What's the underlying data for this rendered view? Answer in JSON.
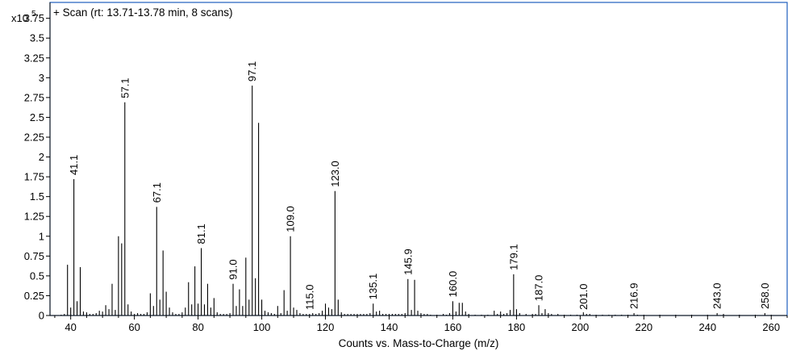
{
  "chart_data": {
    "type": "bar",
    "title": "+ Scan (rt: 13.71-13.78 min, 8 scans)",
    "xlabel": "Counts vs. Mass-to-Charge (m/z)",
    "ylabel": "",
    "y_multiplier": "x10",
    "y_exponent": "5",
    "xlim": [
      33.5,
      265
    ],
    "ylim": [
      0,
      3.95
    ],
    "x_ticks": [
      "40",
      "60",
      "80",
      "100",
      "120",
      "140",
      "160",
      "180",
      "200",
      "220",
      "240",
      "260"
    ],
    "y_ticks": [
      "0",
      "0.25",
      "0.5",
      "0.75",
      "1",
      "1.25",
      "1.5",
      "1.75",
      "2",
      "2.25",
      "2.5",
      "2.75",
      "3",
      "3.25",
      "3.5",
      "3.75"
    ],
    "grid": false,
    "frame_color": "#1f5fbf",
    "series": [
      {
        "x": [
          37,
          38,
          39,
          40,
          41,
          42,
          43,
          44,
          45,
          46,
          47,
          48,
          49,
          50,
          51,
          52,
          53,
          54,
          55,
          56,
          57,
          58,
          59,
          60,
          61,
          62,
          63,
          64,
          65,
          66,
          67,
          68,
          69,
          70,
          71,
          72,
          73,
          74,
          75,
          76,
          77,
          78,
          79,
          80,
          81,
          82,
          83,
          84,
          85,
          86,
          87,
          88,
          89,
          90,
          91,
          92,
          93,
          94,
          95,
          96,
          97,
          98,
          99,
          100,
          101,
          102,
          103,
          104,
          105,
          106,
          107,
          108,
          109,
          110,
          111,
          112,
          113,
          114,
          115,
          116,
          117,
          118,
          119,
          120,
          121,
          122,
          123,
          124,
          125,
          126,
          127,
          128,
          129,
          130,
          131,
          132,
          133,
          134,
          135,
          136,
          137,
          138,
          139,
          140,
          141,
          142,
          143,
          144,
          145,
          145.9,
          147,
          148,
          149,
          150,
          151,
          152,
          153,
          155,
          157,
          158,
          159,
          160,
          161,
          162,
          163,
          164,
          165,
          167,
          169,
          171,
          173,
          174,
          175,
          176,
          177,
          178,
          179.1,
          180,
          181,
          183,
          185,
          186,
          187,
          188,
          189,
          190,
          191,
          193,
          195,
          197,
          199,
          201,
          202,
          203,
          205,
          207,
          209,
          211,
          213,
          215,
          216.9,
          218,
          220,
          225,
          230,
          235,
          240,
          243,
          245,
          250,
          255,
          258,
          260
        ],
        "values": [
          0.01,
          0.02,
          0.64,
          0.1,
          1.72,
          0.18,
          0.61,
          0.05,
          0.04,
          0.02,
          0.02,
          0.03,
          0.06,
          0.05,
          0.13,
          0.08,
          0.4,
          0.07,
          1.0,
          0.91,
          2.69,
          0.14,
          0.05,
          0.02,
          0.03,
          0.02,
          0.02,
          0.04,
          0.28,
          0.12,
          1.37,
          0.2,
          0.82,
          0.3,
          0.1,
          0.04,
          0.02,
          0.02,
          0.04,
          0.1,
          0.42,
          0.14,
          0.62,
          0.15,
          0.85,
          0.14,
          0.4,
          0.1,
          0.22,
          0.04,
          0.02,
          0.02,
          0.02,
          0.03,
          0.4,
          0.12,
          0.33,
          0.12,
          0.73,
          0.2,
          2.9,
          0.47,
          2.43,
          0.2,
          0.06,
          0.04,
          0.03,
          0.02,
          0.12,
          0.03,
          0.32,
          0.06,
          1.0,
          0.1,
          0.07,
          0.03,
          0.02,
          0.02,
          0.02,
          0.03,
          0.02,
          0.03,
          0.06,
          0.15,
          0.1,
          0.08,
          1.57,
          0.2,
          0.04,
          0.02,
          0.02,
          0.02,
          0.02,
          0.02,
          0.02,
          0.02,
          0.02,
          0.03,
          0.15,
          0.05,
          0.06,
          0.02,
          0.02,
          0.02,
          0.02,
          0.02,
          0.02,
          0.02,
          0.03,
          0.46,
          0.07,
          0.45,
          0.06,
          0.03,
          0.02,
          0.02,
          0.01,
          0.01,
          0.02,
          0.01,
          0.03,
          0.18,
          0.05,
          0.16,
          0.16,
          0.05,
          0.02,
          0.01,
          0.01,
          0.01,
          0.06,
          0.02,
          0.05,
          0.02,
          0.03,
          0.07,
          0.52,
          0.08,
          0.03,
          0.02,
          0.02,
          0.02,
          0.13,
          0.03,
          0.08,
          0.03,
          0.02,
          0.02,
          0.01,
          0.01,
          0.01,
          0.04,
          0.02,
          0.02,
          0.01,
          0.01,
          0.01,
          0.01,
          0.01,
          0.01,
          0.03,
          0.01,
          0.01,
          0.01,
          0.01,
          0.01,
          0.01,
          0.03,
          0.02,
          0.01,
          0.01,
          0.03,
          0.01
        ]
      }
    ],
    "peak_labels": [
      {
        "text": "41.1",
        "x": 41,
        "y": 1.72
      },
      {
        "text": "57.1",
        "x": 57,
        "y": 2.69
      },
      {
        "text": "67.1",
        "x": 67,
        "y": 1.37
      },
      {
        "text": "81.1",
        "x": 81,
        "y": 0.85
      },
      {
        "text": "91.0",
        "x": 91,
        "y": 0.4
      },
      {
        "text": "97.1",
        "x": 97,
        "y": 2.9
      },
      {
        "text": "109.0",
        "x": 109,
        "y": 1.0
      },
      {
        "text": "115.0",
        "x": 115,
        "y": 0.02
      },
      {
        "text": "123.0",
        "x": 123,
        "y": 1.57
      },
      {
        "text": "135.1",
        "x": 135,
        "y": 0.15
      },
      {
        "text": "145.9",
        "x": 145.9,
        "y": 0.46
      },
      {
        "text": "160.0",
        "x": 160,
        "y": 0.18
      },
      {
        "text": "179.1",
        "x": 179.1,
        "y": 0.52
      },
      {
        "text": "187.0",
        "x": 187,
        "y": 0.13
      },
      {
        "text": "201.0",
        "x": 201,
        "y": 0.02
      },
      {
        "text": "216.9",
        "x": 216.9,
        "y": 0.03
      },
      {
        "text": "243.0",
        "x": 243,
        "y": 0.03
      },
      {
        "text": "258.0",
        "x": 258,
        "y": 0.03
      }
    ]
  }
}
